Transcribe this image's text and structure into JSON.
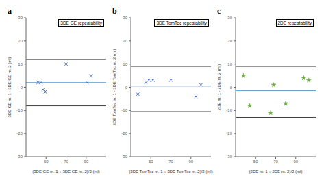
{
  "chart_data": [
    {
      "type": "scatter",
      "title": "3DE GE repeatability",
      "annotations": [
        "a"
      ],
      "xlabel": "(3DE GE m. 1 + 3DE GE m. 2)/2 (ml)",
      "ylabel": "3DE GE m. 1 - 3DE GE m. 2 (ml)",
      "xlim": [
        30,
        110
      ],
      "ylim": [
        -30,
        30
      ],
      "xticks": [
        50,
        70,
        90
      ],
      "yticks": [
        -30,
        -20,
        -10,
        0,
        10,
        20,
        30
      ],
      "reference_lines": [
        {
          "value": 12.0,
          "color": "#404040"
        },
        {
          "value": -8.0,
          "color": "#404040"
        },
        {
          "value": 2.0,
          "color": "#5B9BD5"
        }
      ],
      "series": [
        {
          "color": "#4472C4",
          "marker": "x",
          "x": [
            42,
            45,
            47,
            49,
            70,
            91,
            95
          ],
          "values": [
            2,
            2,
            -1,
            -2,
            10,
            2,
            5
          ]
        }
      ],
      "grid": false
    },
    {
      "type": "scatter",
      "title": "3DE TomTec repeatability",
      "annotations": [
        "b"
      ],
      "xlabel": "(3DE TomTec m. 1 + 3DE TomTec m. 2)/2 (ml)",
      "ylabel": "3DE TomTec m. 1 - 3DE TomTec m. 2 (ml)",
      "xlim": [
        30,
        110
      ],
      "ylim": [
        -30,
        30
      ],
      "xticks": [
        50,
        70,
        90
      ],
      "yticks": [
        -30,
        -20,
        -10,
        0,
        10,
        20,
        30
      ],
      "reference_lines": [
        {
          "value": 9.0,
          "color": "#404040"
        },
        {
          "value": -10.5,
          "color": "#404040"
        },
        {
          "value": 0.5,
          "color": "#5B9BD5"
        }
      ],
      "series": [
        {
          "color": "#4472C4",
          "marker": "x",
          "x": [
            37,
            45,
            48,
            52,
            70,
            95,
            100
          ],
          "values": [
            -3,
            2,
            3,
            3,
            3,
            -4,
            1
          ]
        }
      ],
      "grid": false
    },
    {
      "type": "scatter",
      "title": "2DE repeatability",
      "annotations": [
        "c"
      ],
      "xlabel": "(2DE m. 1 + 2DE m. 2)/2 (ml)",
      "ylabel": "2DE m. 1 - 2DE m. 2 (ml)",
      "xlim": [
        30,
        110
      ],
      "ylim": [
        -30,
        30
      ],
      "xticks": [
        50,
        70,
        90
      ],
      "yticks": [
        -30,
        -20,
        -10,
        0,
        10,
        20,
        30
      ],
      "reference_lines": [
        {
          "value": 9.0,
          "color": "#404040"
        },
        {
          "value": -13.0,
          "color": "#404040"
        },
        {
          "value": -1.5,
          "color": "#5B9BD5"
        }
      ],
      "series": [
        {
          "color": "#70AD47",
          "marker": "star",
          "x": [
            38,
            44,
            65,
            68,
            80,
            98,
            103
          ],
          "values": [
            5,
            -8,
            -11,
            1,
            -7,
            4,
            3
          ]
        }
      ],
      "grid": false
    }
  ]
}
